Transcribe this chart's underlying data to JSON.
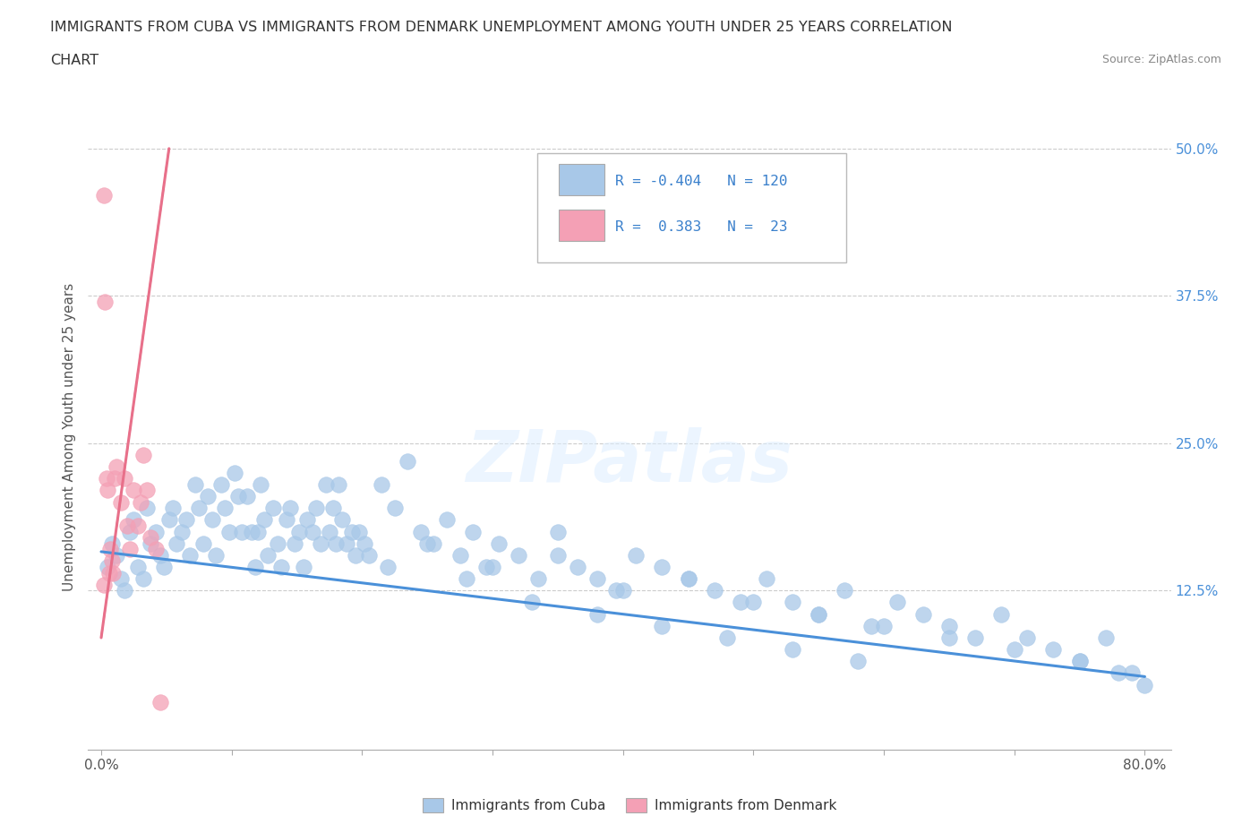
{
  "title_line1": "IMMIGRANTS FROM CUBA VS IMMIGRANTS FROM DENMARK UNEMPLOYMENT AMONG YOUTH UNDER 25 YEARS CORRELATION",
  "title_line2": "CHART",
  "source": "Source: ZipAtlas.com",
  "ylabel": "Unemployment Among Youth under 25 years",
  "xlim": [
    -0.01,
    0.82
  ],
  "ylim": [
    -0.01,
    0.52
  ],
  "cuba_R": -0.404,
  "cuba_N": 120,
  "denmark_R": 0.383,
  "denmark_N": 23,
  "cuba_color": "#a8c8e8",
  "denmark_color": "#f4a0b5",
  "cuba_line_color": "#4a90d9",
  "denmark_line_color": "#e8708a",
  "watermark_text": "ZIPatlas",
  "cuba_scatter_x": [
    0.005,
    0.008,
    0.012,
    0.015,
    0.018,
    0.022,
    0.025,
    0.028,
    0.032,
    0.035,
    0.038,
    0.042,
    0.045,
    0.048,
    0.052,
    0.055,
    0.058,
    0.062,
    0.065,
    0.068,
    0.072,
    0.075,
    0.078,
    0.082,
    0.085,
    0.088,
    0.092,
    0.095,
    0.098,
    0.102,
    0.105,
    0.108,
    0.112,
    0.115,
    0.118,
    0.122,
    0.125,
    0.128,
    0.132,
    0.135,
    0.138,
    0.142,
    0.145,
    0.148,
    0.152,
    0.155,
    0.158,
    0.162,
    0.165,
    0.168,
    0.172,
    0.175,
    0.178,
    0.182,
    0.185,
    0.188,
    0.192,
    0.195,
    0.198,
    0.202,
    0.205,
    0.215,
    0.225,
    0.235,
    0.245,
    0.255,
    0.265,
    0.275,
    0.285,
    0.295,
    0.305,
    0.32,
    0.335,
    0.35,
    0.365,
    0.38,
    0.395,
    0.41,
    0.43,
    0.45,
    0.47,
    0.49,
    0.51,
    0.53,
    0.55,
    0.57,
    0.59,
    0.61,
    0.63,
    0.65,
    0.67,
    0.69,
    0.71,
    0.73,
    0.75,
    0.77,
    0.79,
    0.25,
    0.3,
    0.35,
    0.4,
    0.45,
    0.5,
    0.55,
    0.6,
    0.65,
    0.7,
    0.75,
    0.78,
    0.8,
    0.12,
    0.18,
    0.22,
    0.28,
    0.33,
    0.38,
    0.43,
    0.48,
    0.53,
    0.58
  ],
  "cuba_scatter_y": [
    0.145,
    0.165,
    0.155,
    0.135,
    0.125,
    0.175,
    0.185,
    0.145,
    0.135,
    0.195,
    0.165,
    0.175,
    0.155,
    0.145,
    0.185,
    0.195,
    0.165,
    0.175,
    0.185,
    0.155,
    0.215,
    0.195,
    0.165,
    0.205,
    0.185,
    0.155,
    0.215,
    0.195,
    0.175,
    0.225,
    0.205,
    0.175,
    0.205,
    0.175,
    0.145,
    0.215,
    0.185,
    0.155,
    0.195,
    0.165,
    0.145,
    0.185,
    0.195,
    0.165,
    0.175,
    0.145,
    0.185,
    0.175,
    0.195,
    0.165,
    0.215,
    0.175,
    0.195,
    0.215,
    0.185,
    0.165,
    0.175,
    0.155,
    0.175,
    0.165,
    0.155,
    0.215,
    0.195,
    0.235,
    0.175,
    0.165,
    0.185,
    0.155,
    0.175,
    0.145,
    0.165,
    0.155,
    0.135,
    0.175,
    0.145,
    0.135,
    0.125,
    0.155,
    0.145,
    0.135,
    0.125,
    0.115,
    0.135,
    0.115,
    0.105,
    0.125,
    0.095,
    0.115,
    0.105,
    0.095,
    0.085,
    0.105,
    0.085,
    0.075,
    0.065,
    0.085,
    0.055,
    0.165,
    0.145,
    0.155,
    0.125,
    0.135,
    0.115,
    0.105,
    0.095,
    0.085,
    0.075,
    0.065,
    0.055,
    0.045,
    0.175,
    0.165,
    0.145,
    0.135,
    0.115,
    0.105,
    0.095,
    0.085,
    0.075,
    0.065
  ],
  "denmark_scatter_x": [
    0.002,
    0.003,
    0.004,
    0.005,
    0.006,
    0.007,
    0.008,
    0.009,
    0.01,
    0.012,
    0.015,
    0.018,
    0.02,
    0.022,
    0.025,
    0.028,
    0.03,
    0.032,
    0.035,
    0.038,
    0.042,
    0.045,
    0.002
  ],
  "denmark_scatter_y": [
    0.46,
    0.37,
    0.22,
    0.21,
    0.14,
    0.16,
    0.15,
    0.14,
    0.22,
    0.23,
    0.2,
    0.22,
    0.18,
    0.16,
    0.21,
    0.18,
    0.2,
    0.24,
    0.21,
    0.17,
    0.16,
    0.03,
    0.13
  ],
  "cuba_trend_x": [
    0.0,
    0.8
  ],
  "cuba_trend_y": [
    0.158,
    0.052
  ],
  "denmark_trend_x": [
    0.0,
    0.052
  ],
  "denmark_trend_y": [
    0.085,
    0.5
  ]
}
